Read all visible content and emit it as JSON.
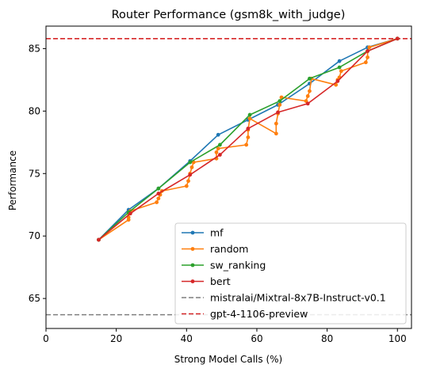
{
  "chart_data": {
    "type": "line",
    "title": "Router Performance (gsm8k_with_judge)",
    "xlabel": "Strong Model Calls (%)",
    "ylabel": "Performance",
    "xlim": [
      0,
      104
    ],
    "ylim": [
      62.6,
      86.8
    ],
    "xticks": [
      0,
      20,
      40,
      60,
      80,
      100
    ],
    "yticks": [
      65,
      70,
      75,
      80,
      85
    ],
    "legend_position": "lower-right",
    "grid": false,
    "series": [
      {
        "name": "mf",
        "color": "#1f77b4",
        "points": [
          [
            15,
            69.7
          ],
          [
            23.5,
            72.1
          ],
          [
            32,
            73.8
          ],
          [
            41,
            76
          ],
          [
            49,
            78.1
          ],
          [
            57.5,
            79.3
          ],
          [
            66,
            80.5
          ],
          [
            75,
            82.2
          ],
          [
            83.5,
            84
          ],
          [
            91.5,
            85.1
          ],
          [
            100,
            85.8
          ]
        ]
      },
      {
        "name": "random",
        "color": "#ff7f0e",
        "points": [
          [
            15,
            69.7
          ],
          [
            23.5,
            71.3
          ],
          [
            23.5,
            71.5
          ],
          [
            23.5,
            71.8
          ],
          [
            24,
            72
          ],
          [
            31.5,
            72.7
          ],
          [
            32,
            73
          ],
          [
            32.5,
            73.3
          ],
          [
            33,
            73.6
          ],
          [
            40,
            74
          ],
          [
            40.5,
            74.4
          ],
          [
            41,
            75
          ],
          [
            41.5,
            75.5
          ],
          [
            42,
            75.9
          ],
          [
            48.5,
            76.2
          ],
          [
            48.5,
            76.7
          ],
          [
            49,
            77
          ],
          [
            57,
            77.3
          ],
          [
            57.5,
            77.9
          ],
          [
            57.5,
            78.5
          ],
          [
            58,
            79.4
          ],
          [
            65.5,
            78.2
          ],
          [
            65.5,
            79
          ],
          [
            66,
            79.8
          ],
          [
            66.5,
            80.5
          ],
          [
            67,
            81.1
          ],
          [
            74,
            80.8
          ],
          [
            74.5,
            81.2
          ],
          [
            75,
            81.6
          ],
          [
            75.5,
            82.6
          ],
          [
            82.5,
            82.1
          ],
          [
            83,
            82.5
          ],
          [
            83.5,
            82.7
          ],
          [
            84,
            83.2
          ],
          [
            91,
            83.9
          ],
          [
            91.5,
            84.3
          ],
          [
            91.5,
            84.8
          ],
          [
            92,
            85.1
          ],
          [
            100,
            85.8
          ]
        ]
      },
      {
        "name": "sw_ranking",
        "color": "#2ca02c",
        "points": [
          [
            15,
            69.7
          ],
          [
            23.5,
            71.9
          ],
          [
            32,
            73.8
          ],
          [
            41,
            75.9
          ],
          [
            49.5,
            77.3
          ],
          [
            58,
            79.7
          ],
          [
            66.5,
            80.8
          ],
          [
            75,
            82.6
          ],
          [
            83.5,
            83.5
          ],
          [
            91.5,
            84.8
          ],
          [
            100,
            85.8
          ]
        ]
      },
      {
        "name": "bert",
        "color": "#d62728",
        "points": [
          [
            15,
            69.7
          ],
          [
            24,
            71.8
          ],
          [
            32,
            73.4
          ],
          [
            41,
            74.9
          ],
          [
            49.5,
            76.5
          ],
          [
            57.5,
            78.6
          ],
          [
            66,
            79.9
          ],
          [
            74.5,
            80.6
          ],
          [
            83,
            82.4
          ],
          [
            91.5,
            84.8
          ],
          [
            100,
            85.8
          ]
        ]
      }
    ],
    "reference_lines": [
      {
        "name": "mistralai/Mixtral-8x7B-Instruct-v0.1",
        "y": 63.7,
        "color": "#7f7f7f"
      },
      {
        "name": "gpt-4-1106-preview",
        "y": 85.8,
        "color": "#d62728"
      }
    ]
  }
}
